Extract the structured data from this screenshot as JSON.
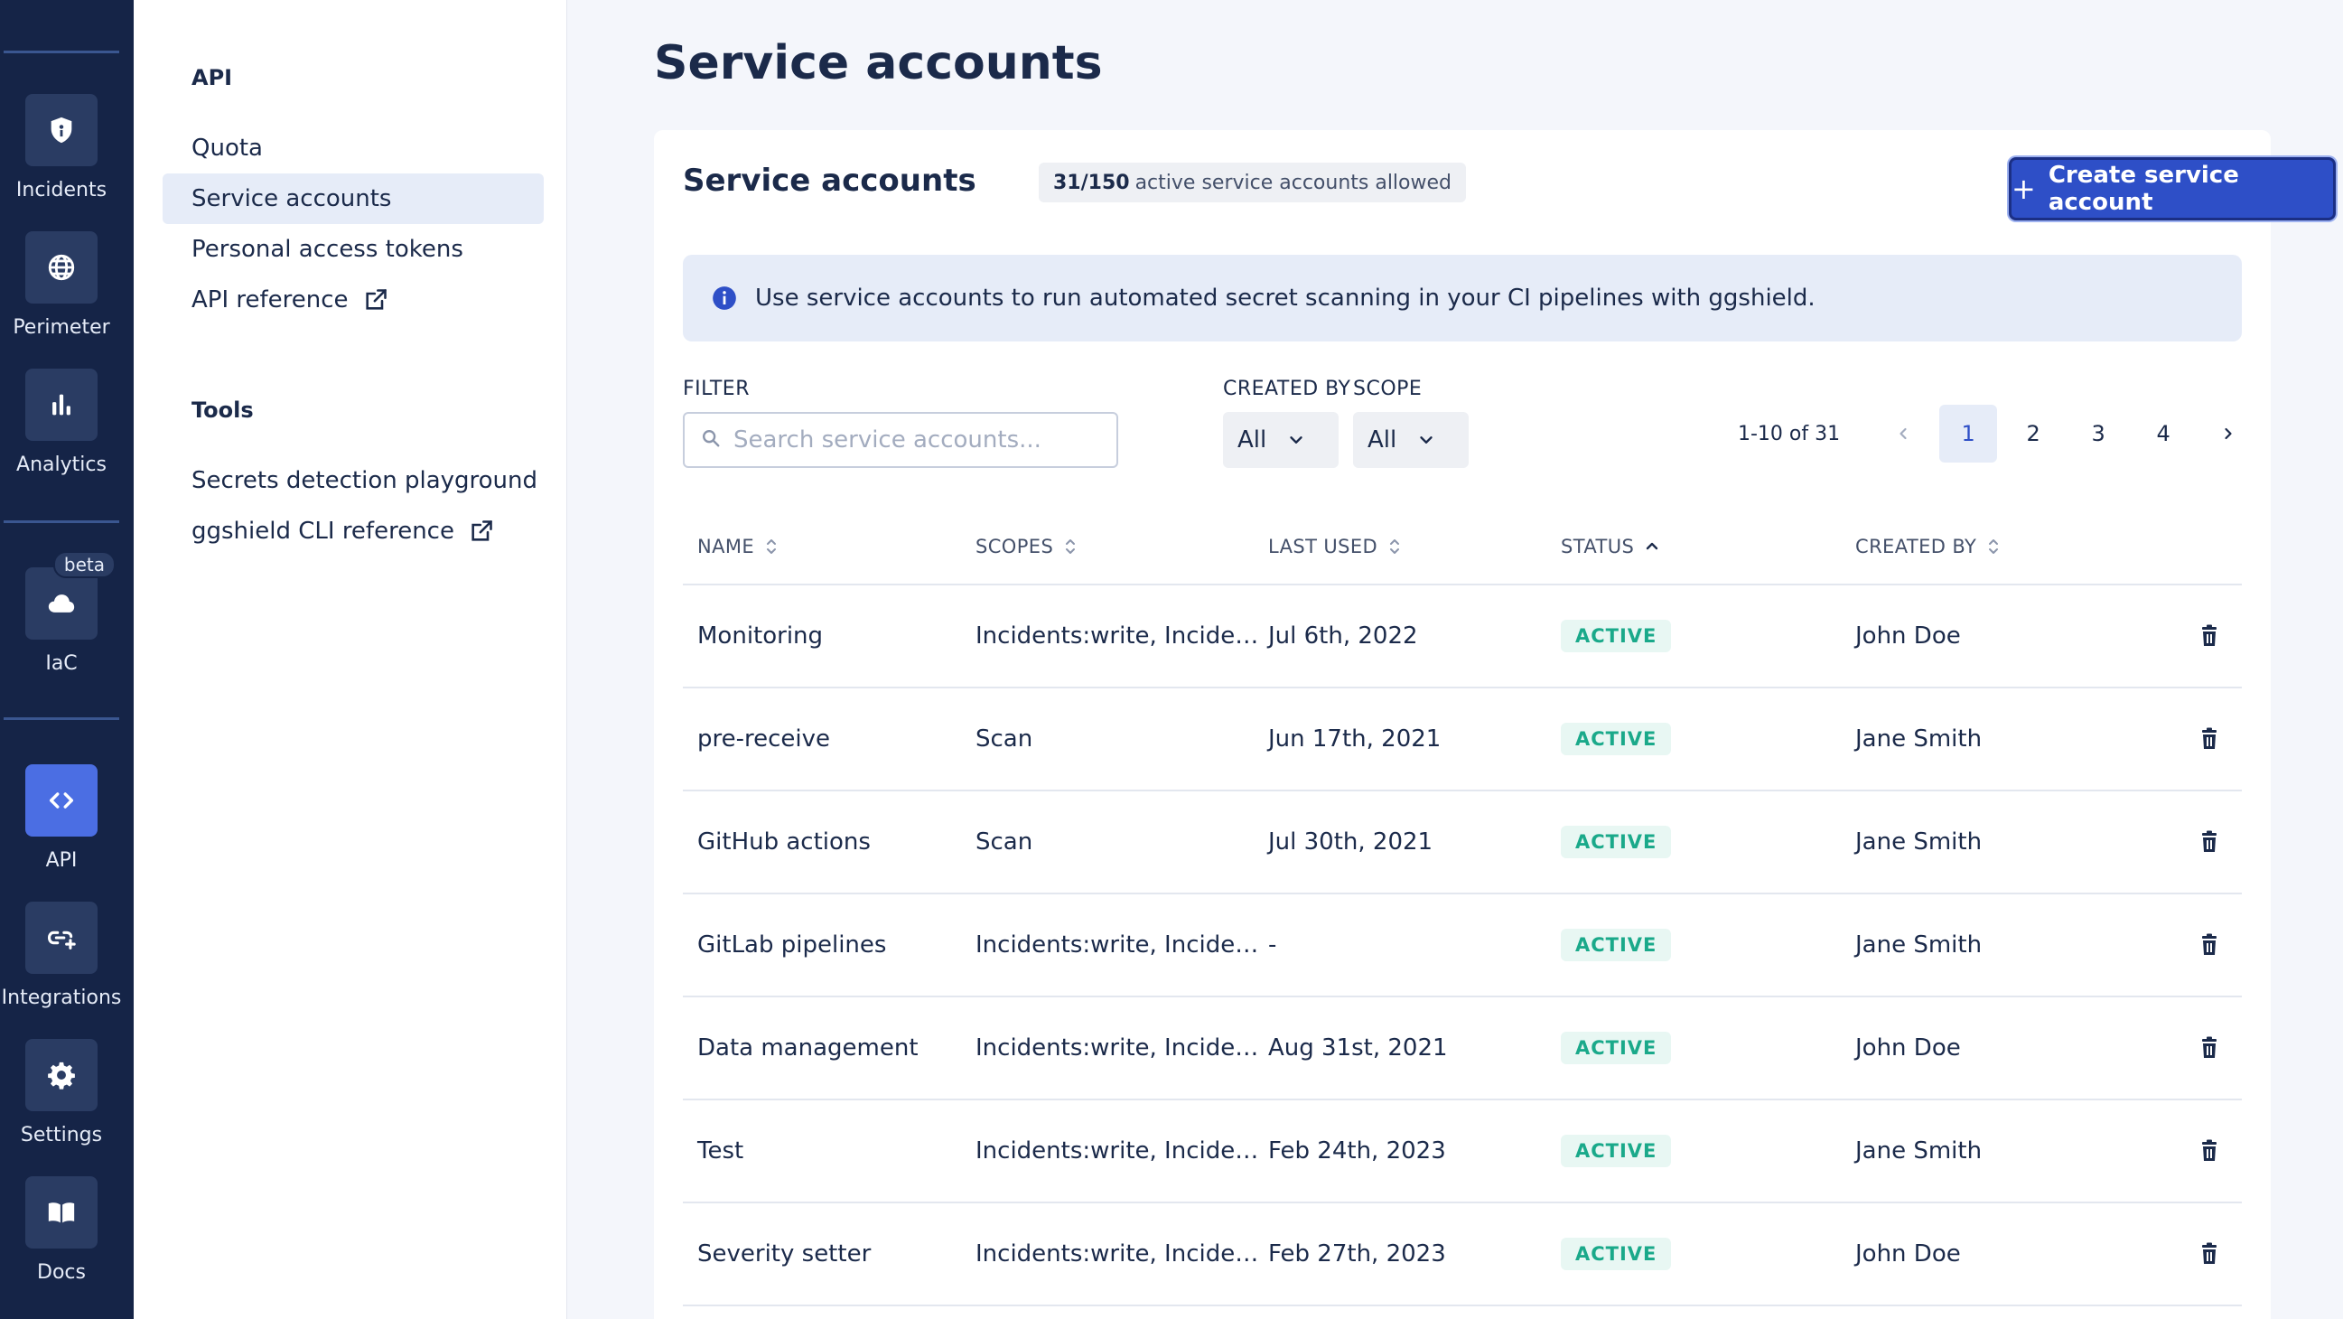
{
  "rail": {
    "items": [
      {
        "label": "Incidents",
        "icon": "shield-icon"
      },
      {
        "label": "Perimeter",
        "icon": "globe-icon"
      },
      {
        "label": "Analytics",
        "icon": "bar-chart-icon"
      },
      {
        "label": "IaC",
        "icon": "cloud-icon",
        "badge": "beta"
      },
      {
        "label": "API",
        "icon": "code-icon",
        "active": true
      },
      {
        "label": "Integrations",
        "icon": "link-plus-icon"
      },
      {
        "label": "Settings",
        "icon": "gear-icon"
      },
      {
        "label": "Docs",
        "icon": "book-icon"
      }
    ]
  },
  "subnav": {
    "api_heading": "API",
    "api_items": [
      "Quota",
      "Service accounts",
      "Personal access tokens",
      "API reference"
    ],
    "tools_heading": "Tools",
    "tools_items": [
      "Secrets detection playground",
      "ggshield CLI reference"
    ]
  },
  "page": {
    "title": "Service accounts"
  },
  "card": {
    "title": "Service accounts",
    "quota_count": "31/150",
    "quota_text": "active service accounts allowed",
    "create_label": "Create service account",
    "info_text": "Use service accounts to run automated secret scanning in your CI pipelines with ggshield."
  },
  "filters": {
    "filter_label": "FILTER",
    "search_placeholder": "Search service accounts...",
    "created_by_label": "CREATED BY",
    "created_by_value": "All",
    "scope_label": "SCOPE",
    "scope_value": "All"
  },
  "pagination": {
    "range": "1-10 of 31",
    "pages": [
      "1",
      "2",
      "3",
      "4"
    ],
    "current": "1"
  },
  "table": {
    "headers": {
      "name": "NAME",
      "scopes": "SCOPES",
      "last_used": "LAST USED",
      "status": "STATUS",
      "created_by": "CREATED BY"
    },
    "rows": [
      {
        "name": "Monitoring",
        "scopes": "Incidents:write, Incidents:read",
        "last_used": "Jul 6th, 2022",
        "status": "ACTIVE",
        "created_by": "John Doe"
      },
      {
        "name": "pre-receive",
        "scopes": "Scan",
        "last_used": "Jun 17th, 2021",
        "status": "ACTIVE",
        "created_by": "Jane Smith"
      },
      {
        "name": "GitHub actions",
        "scopes": "Scan",
        "last_used": "Jul 30th, 2021",
        "status": "ACTIVE",
        "created_by": "Jane Smith"
      },
      {
        "name": "GitLab pipelines",
        "scopes": "Incidents:write, Incidents:read",
        "last_used": "-",
        "status": "ACTIVE",
        "created_by": "Jane Smith"
      },
      {
        "name": "Data management",
        "scopes": "Incidents:write, Incidents:read",
        "last_used": "Aug 31st, 2021",
        "status": "ACTIVE",
        "created_by": "John Doe"
      },
      {
        "name": "Test",
        "scopes": "Incidents:write, Incidents:read",
        "last_used": "Feb 24th, 2023",
        "status": "ACTIVE",
        "created_by": "Jane Smith"
      },
      {
        "name": "Severity setter",
        "scopes": "Incidents:write, Incidents:read",
        "last_used": "Feb 27th, 2023",
        "status": "ACTIVE",
        "created_by": "John Doe"
      }
    ]
  },
  "colors": {
    "rail_bg": "#152447",
    "accent": "#2e4fc7",
    "status_active": "#1aa98a"
  }
}
